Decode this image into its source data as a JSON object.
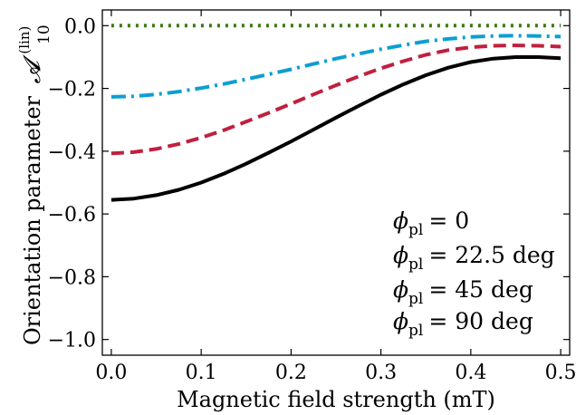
{
  "chart_data": {
    "type": "line",
    "title": "",
    "xlabel": "Magnetic field strength (mT)",
    "ylabel": "Orientation parameter",
    "ylabel_symbol": "𝓐",
    "ylabel_superscript": "(lin)",
    "ylabel_subscript": "10",
    "xlim": [
      -0.01,
      0.51
    ],
    "ylim": [
      -1.05,
      0.05
    ],
    "xticks": [
      0.0,
      0.1,
      0.2,
      0.3,
      0.4,
      0.5
    ],
    "xtick_labels": [
      "0.0",
      "0.1",
      "0.2",
      "0.3",
      "0.4",
      "0.5"
    ],
    "yticks": [
      0.0,
      -0.2,
      -0.4,
      -0.6,
      -0.8,
      -1.0
    ],
    "ytick_labels": [
      "0.0",
      "−0.2",
      "−0.4",
      "−0.6",
      "−0.8",
      "−1.0"
    ],
    "grid": false,
    "legend_position": "bottom-right",
    "x": [
      0.0,
      0.025,
      0.05,
      0.075,
      0.1,
      0.125,
      0.15,
      0.175,
      0.2,
      0.225,
      0.25,
      0.275,
      0.3,
      0.325,
      0.35,
      0.375,
      0.4,
      0.425,
      0.45,
      0.475,
      0.5
    ],
    "series": [
      {
        "legend_symbol": "ϕ",
        "legend_subscript": "pl",
        "legend_value": "= 0",
        "color": "#3a7a10",
        "dash": "dotted",
        "values": [
          0.0,
          0.0,
          0.0,
          0.0,
          0.0,
          0.0,
          0.0,
          0.0,
          0.0,
          0.0,
          0.0,
          0.0,
          0.0,
          0.0,
          0.0,
          0.0,
          0.0,
          0.0,
          0.0,
          0.0,
          0.0
        ]
      },
      {
        "legend_symbol": "ϕ",
        "legend_subscript": "pl",
        "legend_value": "= 22.5 deg",
        "color": "#0c9fd0",
        "dash": "dashdot",
        "values": [
          -0.227,
          -0.225,
          -0.219,
          -0.21,
          -0.199,
          -0.186,
          -0.171,
          -0.155,
          -0.139,
          -0.122,
          -0.105,
          -0.09,
          -0.075,
          -0.062,
          -0.05,
          -0.042,
          -0.036,
          -0.033,
          -0.032,
          -0.033,
          -0.035
        ]
      },
      {
        "legend_symbol": "ϕ",
        "legend_subscript": "pl",
        "legend_value": "= 45 deg",
        "color": "#c0203e",
        "dash": "dashed",
        "values": [
          -0.407,
          -0.403,
          -0.393,
          -0.377,
          -0.357,
          -0.333,
          -0.306,
          -0.278,
          -0.249,
          -0.219,
          -0.19,
          -0.162,
          -0.136,
          -0.113,
          -0.093,
          -0.078,
          -0.069,
          -0.064,
          -0.063,
          -0.064,
          -0.067
        ]
      },
      {
        "legend_symbol": "ϕ",
        "legend_subscript": "pl",
        "legend_value": "= 90 deg",
        "color": "#000000",
        "dash": "solid",
        "values": [
          -0.555,
          -0.551,
          -0.54,
          -0.523,
          -0.5,
          -0.472,
          -0.44,
          -0.405,
          -0.369,
          -0.331,
          -0.293,
          -0.256,
          -0.22,
          -0.187,
          -0.158,
          -0.134,
          -0.116,
          -0.105,
          -0.1,
          -0.1,
          -0.104
        ]
      }
    ]
  }
}
